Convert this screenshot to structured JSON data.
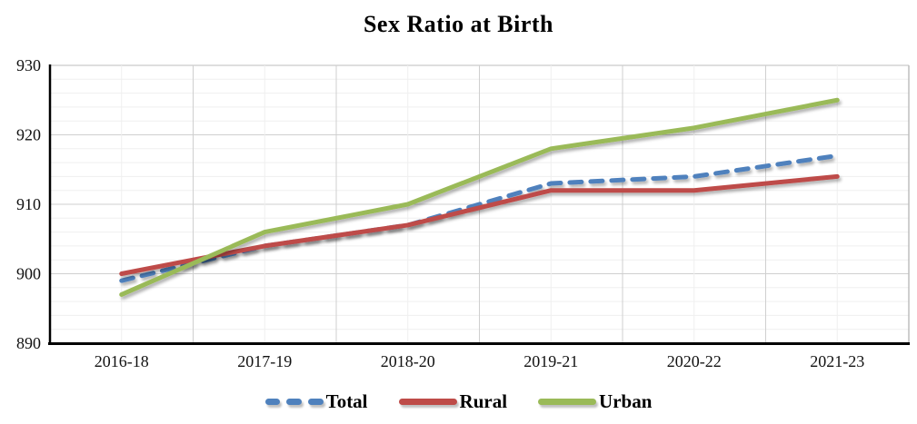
{
  "title": "Sex Ratio at Birth",
  "chart_data": {
    "type": "line",
    "title": "Sex Ratio at Birth",
    "categories": [
      "2016-18",
      "2017-19",
      "2018-20",
      "2019-21",
      "2020-22",
      "2021-23"
    ],
    "series": [
      {
        "name": "Total",
        "color": "#4F81BD",
        "style": "dashed",
        "values": [
          899,
          904,
          907,
          913,
          914,
          917
        ]
      },
      {
        "name": "Rural",
        "color": "#BE4B48",
        "style": "solid",
        "values": [
          900,
          904,
          907,
          912,
          912,
          914
        ]
      },
      {
        "name": "Urban",
        "color": "#9ABA58",
        "style": "solid",
        "values": [
          897,
          906,
          910,
          918,
          921,
          925
        ]
      }
    ],
    "xlabel": "",
    "ylabel": "",
    "ylim": [
      890,
      930
    ],
    "yticks": [
      890,
      900,
      910,
      920,
      930
    ],
    "grid": {
      "horizontal_minor_step": 2,
      "horizontal_major_step": 10,
      "vertical_lines": true
    },
    "legend_position": "bottom",
    "legend_labels": [
      "Total",
      "Rural",
      "Urban"
    ]
  }
}
